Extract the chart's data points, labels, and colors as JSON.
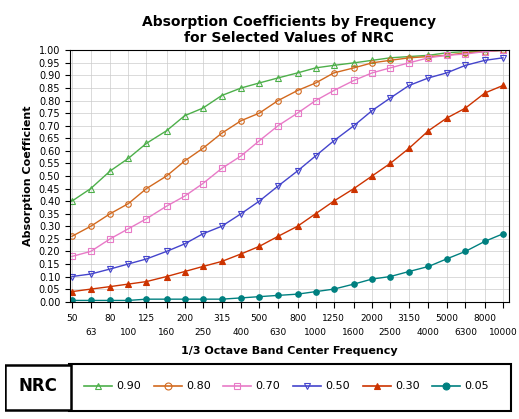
{
  "title": "Absorption Coefficients by Frequency\nfor Selected Values of NRC",
  "xlabel": "1/3 Octave Band Center Frequency",
  "ylabel": "Absorption Coefficient",
  "freqs": [
    50,
    63,
    80,
    100,
    125,
    160,
    200,
    250,
    315,
    400,
    500,
    630,
    800,
    1000,
    1250,
    1600,
    2000,
    2500,
    3150,
    4000,
    5000,
    6300,
    8000,
    10000
  ],
  "top_ticks": [
    50,
    80,
    125,
    200,
    315,
    500,
    800,
    1250,
    2000,
    3150,
    5000,
    8000
  ],
  "bottom_ticks": [
    63,
    100,
    160,
    250,
    400,
    630,
    1000,
    1600,
    2500,
    4000,
    6300,
    10000
  ],
  "ylim": [
    0.0,
    1.0
  ],
  "yticks": [
    0.0,
    0.05,
    0.1,
    0.15,
    0.2,
    0.25,
    0.3,
    0.35,
    0.4,
    0.45,
    0.5,
    0.55,
    0.6,
    0.65,
    0.7,
    0.75,
    0.8,
    0.85,
    0.9,
    0.95,
    1.0
  ],
  "series": [
    {
      "nrc": 0.9,
      "color": "#4daf4a",
      "marker": "^",
      "markerface": "none",
      "values": [
        0.4,
        0.45,
        0.52,
        0.57,
        0.63,
        0.68,
        0.74,
        0.77,
        0.82,
        0.85,
        0.87,
        0.89,
        0.91,
        0.93,
        0.94,
        0.95,
        0.96,
        0.97,
        0.975,
        0.98,
        0.99,
        0.995,
        0.995,
        1.0
      ]
    },
    {
      "nrc": 0.8,
      "color": "#d2691e",
      "marker": "o",
      "markerface": "none",
      "values": [
        0.26,
        0.3,
        0.35,
        0.39,
        0.45,
        0.5,
        0.56,
        0.61,
        0.67,
        0.72,
        0.75,
        0.8,
        0.84,
        0.87,
        0.91,
        0.93,
        0.95,
        0.96,
        0.97,
        0.975,
        0.98,
        0.99,
        0.995,
        1.0
      ]
    },
    {
      "nrc": 0.7,
      "color": "#e87ac7",
      "marker": "s",
      "markerface": "none",
      "values": [
        0.18,
        0.2,
        0.25,
        0.29,
        0.33,
        0.38,
        0.42,
        0.47,
        0.53,
        0.58,
        0.64,
        0.7,
        0.75,
        0.8,
        0.84,
        0.88,
        0.91,
        0.93,
        0.95,
        0.97,
        0.98,
        0.985,
        0.995,
        1.0
      ]
    },
    {
      "nrc": 0.5,
      "color": "#4444cc",
      "marker": "v",
      "markerface": "none",
      "values": [
        0.1,
        0.11,
        0.13,
        0.15,
        0.17,
        0.2,
        0.23,
        0.27,
        0.3,
        0.35,
        0.4,
        0.46,
        0.52,
        0.58,
        0.64,
        0.7,
        0.76,
        0.81,
        0.86,
        0.89,
        0.91,
        0.94,
        0.96,
        0.97
      ]
    },
    {
      "nrc": 0.3,
      "color": "#cc3300",
      "marker": "^",
      "markerface": "filled",
      "values": [
        0.04,
        0.05,
        0.06,
        0.07,
        0.08,
        0.1,
        0.12,
        0.14,
        0.16,
        0.19,
        0.22,
        0.26,
        0.3,
        0.35,
        0.4,
        0.45,
        0.5,
        0.55,
        0.61,
        0.68,
        0.73,
        0.77,
        0.83,
        0.86
      ]
    },
    {
      "nrc": 0.05,
      "color": "#008080",
      "marker": "o",
      "markerface": "filled",
      "values": [
        0.005,
        0.005,
        0.005,
        0.005,
        0.01,
        0.01,
        0.01,
        0.01,
        0.01,
        0.015,
        0.02,
        0.025,
        0.03,
        0.04,
        0.05,
        0.07,
        0.09,
        0.1,
        0.12,
        0.14,
        0.17,
        0.2,
        0.24,
        0.27
      ]
    }
  ],
  "background_color": "#ffffff",
  "grid_color": "#cccccc",
  "legend_nrc_label": "NRC"
}
